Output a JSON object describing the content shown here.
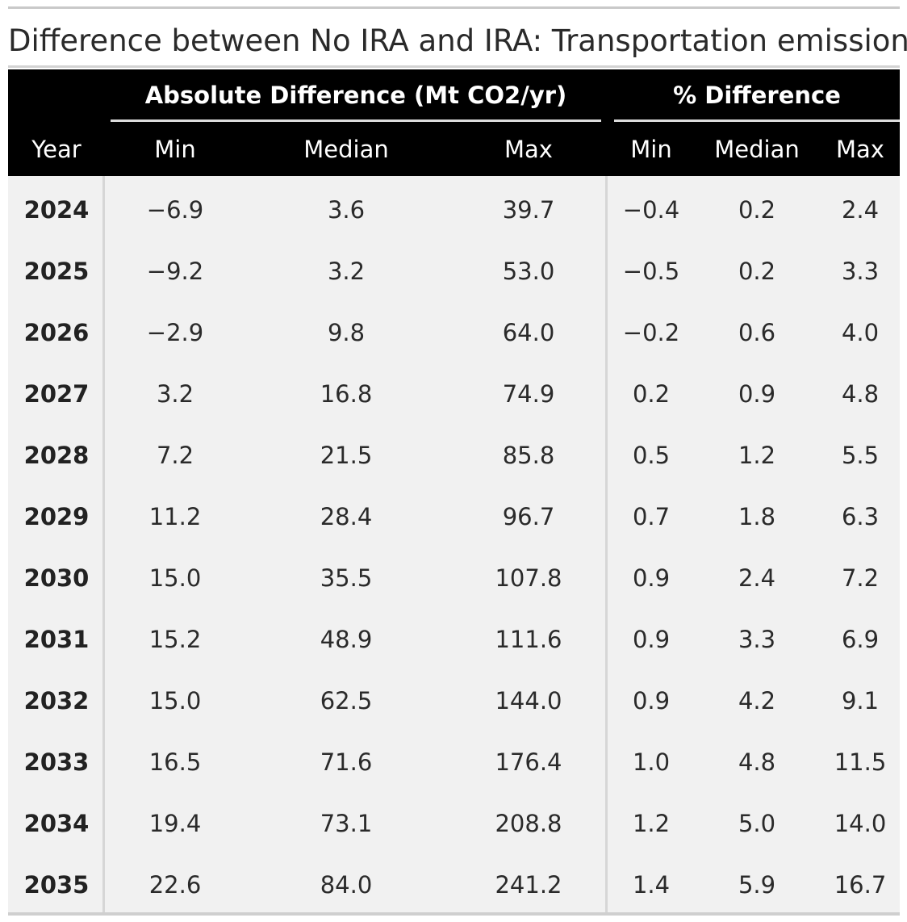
{
  "title": "Difference between No IRA and IRA: Transportation emissions",
  "spanners": {
    "absolute": "Absolute Difference (Mt CO2/yr)",
    "percent": "% Difference"
  },
  "columns": {
    "year": "Year",
    "abs_min": "Min",
    "abs_median": "Median",
    "abs_max": "Max",
    "pct_min": "Min",
    "pct_median": "Median",
    "pct_max": "Max"
  },
  "rows": [
    {
      "year": "2024",
      "abs_min": "−6.9",
      "abs_median": "3.6",
      "abs_max": "39.7",
      "pct_min": "−0.4",
      "pct_median": "0.2",
      "pct_max": "2.4"
    },
    {
      "year": "2025",
      "abs_min": "−9.2",
      "abs_median": "3.2",
      "abs_max": "53.0",
      "pct_min": "−0.5",
      "pct_median": "0.2",
      "pct_max": "3.3"
    },
    {
      "year": "2026",
      "abs_min": "−2.9",
      "abs_median": "9.8",
      "abs_max": "64.0",
      "pct_min": "−0.2",
      "pct_median": "0.6",
      "pct_max": "4.0"
    },
    {
      "year": "2027",
      "abs_min": "3.2",
      "abs_median": "16.8",
      "abs_max": "74.9",
      "pct_min": "0.2",
      "pct_median": "0.9",
      "pct_max": "4.8"
    },
    {
      "year": "2028",
      "abs_min": "7.2",
      "abs_median": "21.5",
      "abs_max": "85.8",
      "pct_min": "0.5",
      "pct_median": "1.2",
      "pct_max": "5.5"
    },
    {
      "year": "2029",
      "abs_min": "11.2",
      "abs_median": "28.4",
      "abs_max": "96.7",
      "pct_min": "0.7",
      "pct_median": "1.8",
      "pct_max": "6.3"
    },
    {
      "year": "2030",
      "abs_min": "15.0",
      "abs_median": "35.5",
      "abs_max": "107.8",
      "pct_min": "0.9",
      "pct_median": "2.4",
      "pct_max": "7.2"
    },
    {
      "year": "2031",
      "abs_min": "15.2",
      "abs_median": "48.9",
      "abs_max": "111.6",
      "pct_min": "0.9",
      "pct_median": "3.3",
      "pct_max": "6.9"
    },
    {
      "year": "2032",
      "abs_min": "15.0",
      "abs_median": "62.5",
      "abs_max": "144.0",
      "pct_min": "0.9",
      "pct_median": "4.2",
      "pct_max": "9.1"
    },
    {
      "year": "2033",
      "abs_min": "16.5",
      "abs_median": "71.6",
      "abs_max": "176.4",
      "pct_min": "1.0",
      "pct_median": "4.8",
      "pct_max": "11.5"
    },
    {
      "year": "2034",
      "abs_min": "19.4",
      "abs_median": "73.1",
      "abs_max": "208.8",
      "pct_min": "1.2",
      "pct_median": "5.0",
      "pct_max": "14.0"
    },
    {
      "year": "2035",
      "abs_min": "22.6",
      "abs_median": "84.0",
      "abs_max": "241.2",
      "pct_min": "1.4",
      "pct_median": "5.9",
      "pct_max": "16.7"
    }
  ]
}
